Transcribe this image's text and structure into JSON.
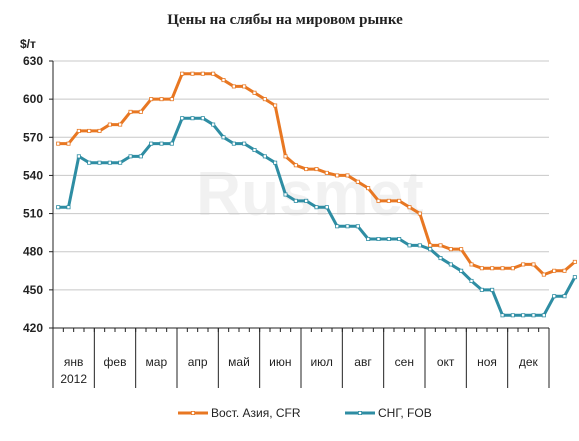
{
  "chart_data": {
    "type": "line",
    "title": "Цены на слябы на мировом рынке",
    "ylabel": "$/т",
    "ylim": [
      420,
      630
    ],
    "yticks": [
      420,
      450,
      480,
      510,
      540,
      570,
      600,
      630
    ],
    "year_label": "2012",
    "months": [
      "янв",
      "фев",
      "мар",
      "апр",
      "май",
      "июн",
      "июл",
      "авг",
      "сен",
      "окт",
      "ноя",
      "дек"
    ],
    "points_per_month": 4,
    "grid": true,
    "legend_position": "bottom",
    "watermark": "Rusmet",
    "series": [
      {
        "name": "Вост. Азия, CFR",
        "color": "#e87722",
        "values": [
          565,
          565,
          575,
          575,
          575,
          580,
          580,
          590,
          590,
          600,
          600,
          600,
          620,
          620,
          620,
          620,
          615,
          610,
          610,
          605,
          600,
          595,
          555,
          548,
          545,
          545,
          542,
          540,
          540,
          535,
          530,
          520,
          520,
          520,
          515,
          510,
          485,
          485,
          482,
          482,
          470,
          467,
          467,
          467,
          467,
          470,
          470,
          462,
          465,
          465,
          472
        ]
      },
      {
        "name": "СНГ, FOB",
        "color": "#2e8da3",
        "values": [
          515,
          515,
          555,
          550,
          550,
          550,
          550,
          555,
          555,
          565,
          565,
          565,
          585,
          585,
          585,
          580,
          570,
          565,
          565,
          560,
          555,
          550,
          525,
          520,
          520,
          515,
          515,
          500,
          500,
          500,
          490,
          490,
          490,
          490,
          485,
          485,
          482,
          475,
          470,
          465,
          457,
          450,
          450,
          430,
          430,
          430,
          430,
          430,
          445,
          445,
          460
        ]
      }
    ]
  }
}
